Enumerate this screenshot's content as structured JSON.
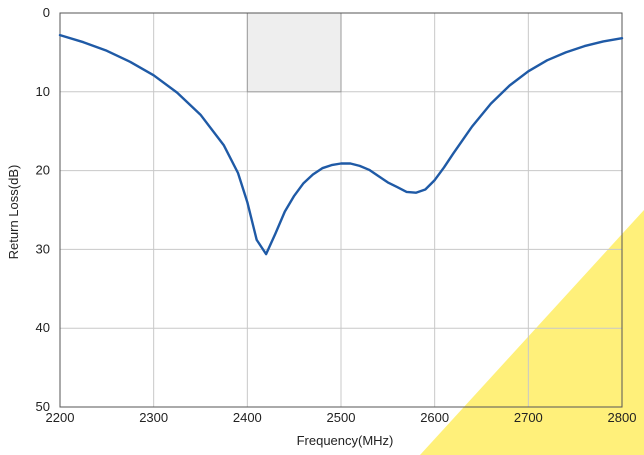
{
  "chart_data": {
    "type": "line",
    "title": "",
    "xlabel": "Frequency(MHz)",
    "ylabel": "Return Loss(dB)",
    "xlim": [
      2200,
      2800
    ],
    "ylim": [
      0,
      50
    ],
    "y_inverted": true,
    "x_ticks": [
      2200,
      2300,
      2400,
      2500,
      2600,
      2700,
      2800
    ],
    "y_ticks": [
      0,
      10,
      20,
      30,
      40,
      50
    ],
    "grid": true,
    "legend": "none",
    "highlight_band": {
      "x": [
        2400,
        2500
      ],
      "y": [
        0,
        10
      ],
      "color": "#eeeeee"
    },
    "series": [
      {
        "color": "#1f5aa6",
        "x": [
          2200,
          2225,
          2250,
          2275,
          2300,
          2325,
          2350,
          2375,
          2390,
          2400,
          2410,
          2420,
          2430,
          2440,
          2450,
          2460,
          2470,
          2480,
          2490,
          2500,
          2510,
          2520,
          2530,
          2540,
          2550,
          2560,
          2570,
          2580,
          2590,
          2600,
          2610,
          2620,
          2640,
          2660,
          2680,
          2700,
          2720,
          2740,
          2760,
          2780,
          2800
        ],
        "y": [
          2.8,
          3.7,
          4.8,
          6.2,
          7.9,
          10.1,
          12.9,
          16.8,
          20.3,
          24.0,
          28.8,
          30.6,
          28.0,
          25.2,
          23.2,
          21.6,
          20.5,
          19.7,
          19.3,
          19.1,
          19.1,
          19.4,
          19.9,
          20.7,
          21.5,
          22.1,
          22.7,
          22.8,
          22.4,
          21.2,
          19.6,
          17.8,
          14.4,
          11.5,
          9.2,
          7.4,
          6.0,
          5.0,
          4.2,
          3.6,
          3.2
        ]
      }
    ]
  },
  "watermark": {
    "color": "#fff07a"
  }
}
